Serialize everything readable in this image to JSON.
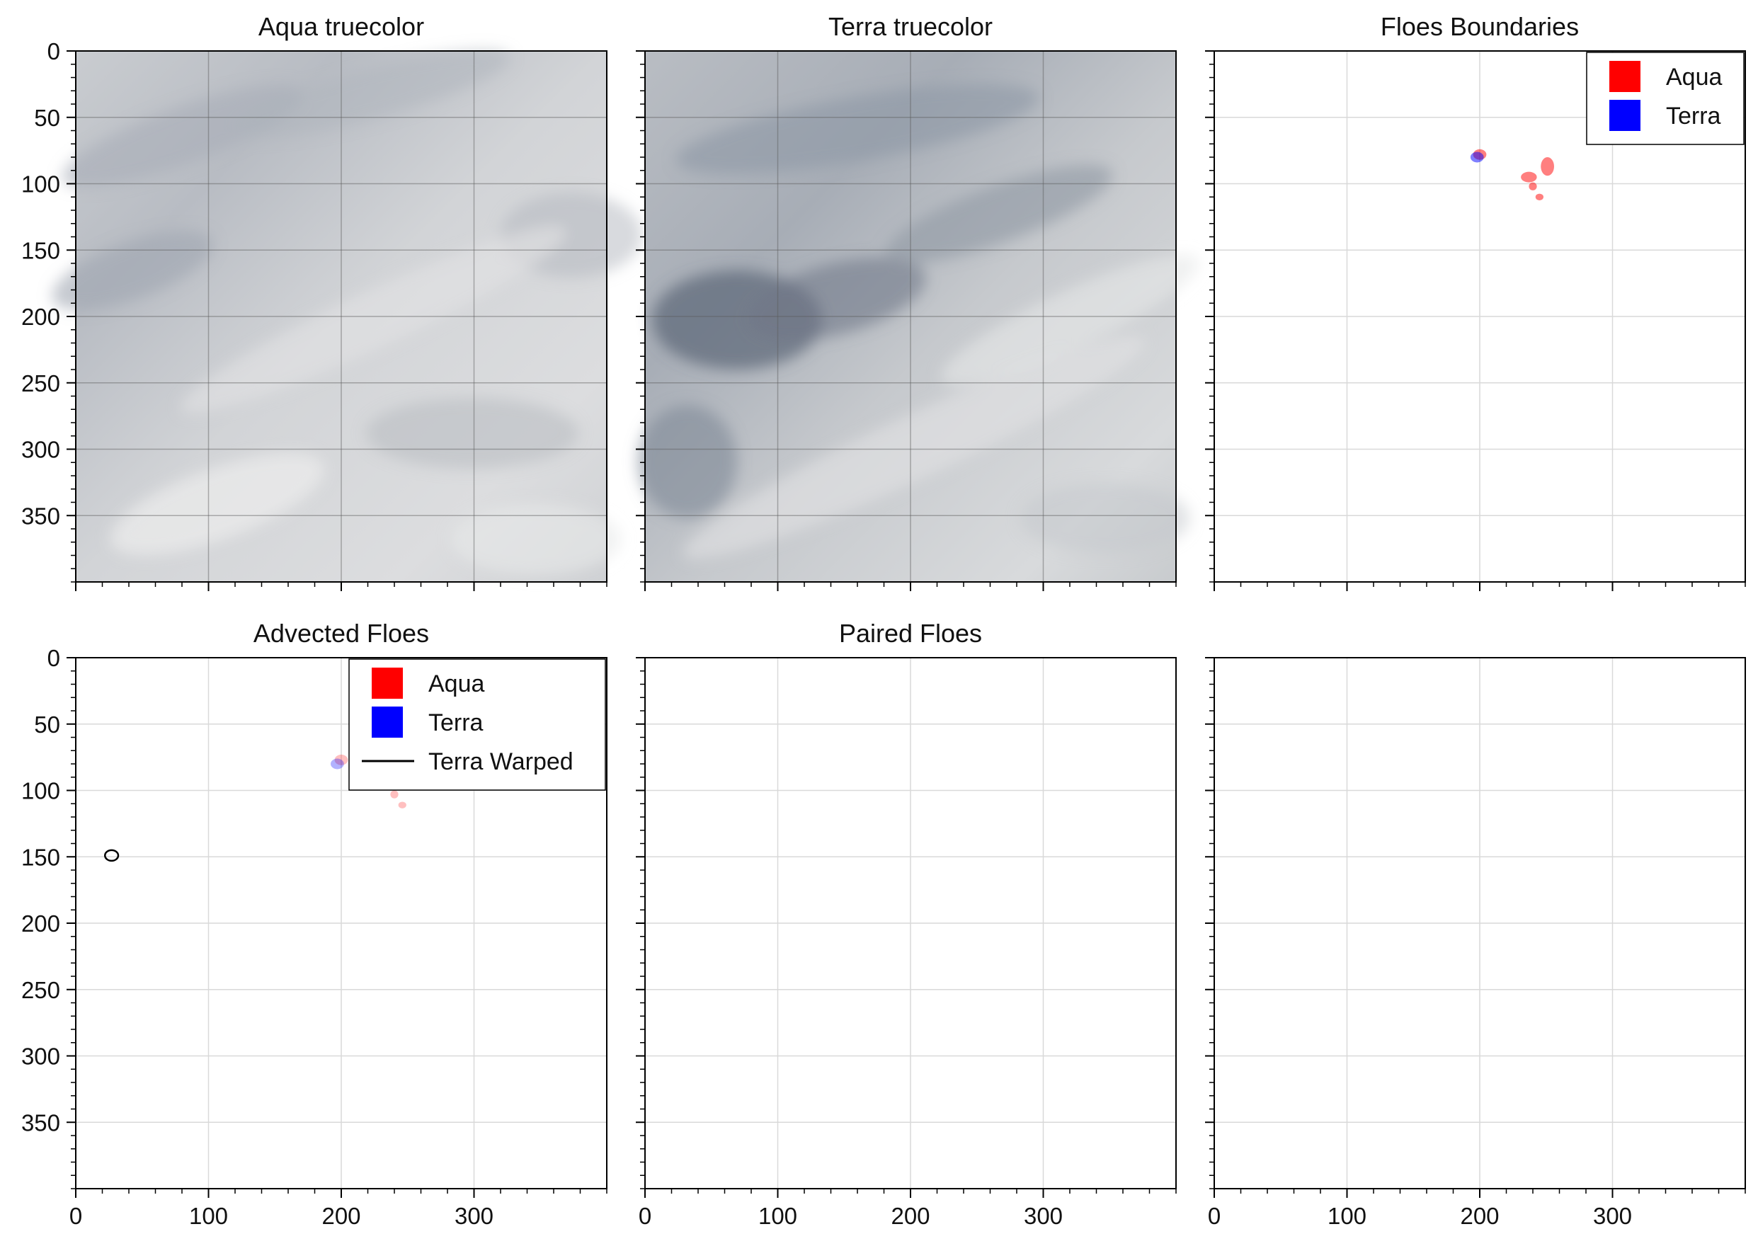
{
  "figure": {
    "layout": "2x3 panel grid",
    "colors": {
      "aqua": "#ff0000",
      "terra": "#0000ff",
      "terra_warped": "#000000",
      "grid": "#d9d9d9",
      "axes": "#000000"
    }
  },
  "chart_data": [
    {
      "id": "aqua-truecolor",
      "type": "heatmap",
      "title": "Aqua truecolor",
      "content": "satellite truecolor image (clouds over sea ice)",
      "xlim": [
        0,
        400
      ],
      "ylim": [
        400,
        0
      ],
      "xticks": [
        0,
        100,
        200,
        300
      ],
      "yticks": [
        0,
        50,
        100,
        150,
        200,
        250,
        300,
        350
      ],
      "show_xticklabels": false,
      "show_yticklabels": true,
      "grid": true
    },
    {
      "id": "terra-truecolor",
      "type": "heatmap",
      "title": "Terra truecolor",
      "content": "satellite truecolor image (clouds over sea ice)",
      "xlim": [
        0,
        400
      ],
      "ylim": [
        400,
        0
      ],
      "xticks": [
        0,
        100,
        200,
        300
      ],
      "yticks": [
        0,
        50,
        100,
        150,
        200,
        250,
        300,
        350
      ],
      "show_xticklabels": false,
      "show_yticklabels": false,
      "grid": true
    },
    {
      "id": "floes-boundaries",
      "type": "scatter",
      "title": "Floes Boundaries",
      "xlim": [
        0,
        400
      ],
      "ylim": [
        400,
        0
      ],
      "xticks": [
        0,
        100,
        200,
        300
      ],
      "yticks": [
        0,
        50,
        100,
        150,
        200,
        250,
        300,
        350
      ],
      "show_xticklabels": false,
      "show_yticklabels": false,
      "grid": true,
      "legend": {
        "placement": "top-right",
        "entries": [
          {
            "label": "Aqua",
            "kind": "patch",
            "color": "#ff0000"
          },
          {
            "label": "Terra",
            "kind": "patch",
            "color": "#0000ff"
          }
        ]
      },
      "floes": [
        {
          "series": "Aqua",
          "x": 200,
          "y": 78,
          "rx": 5,
          "ry": 4,
          "opacity": 0.5
        },
        {
          "series": "Aqua",
          "x": 251,
          "y": 87,
          "rx": 5,
          "ry": 7,
          "opacity": 0.5
        },
        {
          "series": "Aqua",
          "x": 237,
          "y": 95,
          "rx": 6,
          "ry": 4,
          "opacity": 0.5
        },
        {
          "series": "Aqua",
          "x": 240,
          "y": 102,
          "rx": 3,
          "ry": 3,
          "opacity": 0.5
        },
        {
          "series": "Aqua",
          "x": 245,
          "y": 110,
          "rx": 3,
          "ry": 2.5,
          "opacity": 0.5
        },
        {
          "series": "Terra",
          "x": 198,
          "y": 80,
          "rx": 5,
          "ry": 4,
          "opacity": 0.5
        }
      ]
    },
    {
      "id": "advected-floes",
      "type": "scatter",
      "title": "Advected Floes",
      "xlim": [
        0,
        400
      ],
      "ylim": [
        400,
        0
      ],
      "xticks": [
        0,
        100,
        200,
        300
      ],
      "yticks": [
        0,
        50,
        100,
        150,
        200,
        250,
        300,
        350
      ],
      "show_xticklabels": true,
      "show_yticklabels": true,
      "grid": true,
      "legend": {
        "placement": "top-right",
        "entries": [
          {
            "label": "Aqua",
            "kind": "patch",
            "color": "#ff0000"
          },
          {
            "label": "Terra",
            "kind": "patch",
            "color": "#0000ff"
          },
          {
            "label": "Terra Warped",
            "kind": "line",
            "color": "#000000"
          }
        ]
      },
      "floes": [
        {
          "series": "Aqua",
          "x": 200,
          "y": 77,
          "rx": 5,
          "ry": 4,
          "opacity": 0.25
        },
        {
          "series": "Aqua",
          "x": 252,
          "y": 86,
          "rx": 5,
          "ry": 7,
          "opacity": 0.25
        },
        {
          "series": "Aqua",
          "x": 238,
          "y": 96,
          "rx": 6,
          "ry": 4,
          "opacity": 0.25
        },
        {
          "series": "Aqua",
          "x": 240,
          "y": 103,
          "rx": 3,
          "ry": 3,
          "opacity": 0.25
        },
        {
          "series": "Aqua",
          "x": 246,
          "y": 111,
          "rx": 3,
          "ry": 2.5,
          "opacity": 0.25
        },
        {
          "series": "Terra",
          "x": 197,
          "y": 80,
          "rx": 5,
          "ry": 4,
          "opacity": 0.3
        }
      ],
      "outlines": [
        {
          "series": "Terra Warped",
          "x": 27,
          "y": 149,
          "rx": 5,
          "ry": 4
        }
      ]
    },
    {
      "id": "paired-floes",
      "type": "scatter",
      "title": "Paired Floes",
      "xlim": [
        0,
        400
      ],
      "ylim": [
        400,
        0
      ],
      "xticks": [
        0,
        100,
        200,
        300
      ],
      "yticks": [
        0,
        50,
        100,
        150,
        200,
        250,
        300,
        350
      ],
      "show_xticklabels": true,
      "show_yticklabels": false,
      "grid": true,
      "floes": []
    },
    {
      "id": "empty-panel",
      "type": "scatter",
      "title": "",
      "xlim": [
        0,
        400
      ],
      "ylim": [
        400,
        0
      ],
      "xticks": [
        0,
        100,
        200,
        300
      ],
      "yticks": [
        0,
        50,
        100,
        150,
        200,
        250,
        300,
        350
      ],
      "show_xticklabels": true,
      "show_yticklabels": false,
      "grid": true,
      "floes": []
    }
  ]
}
